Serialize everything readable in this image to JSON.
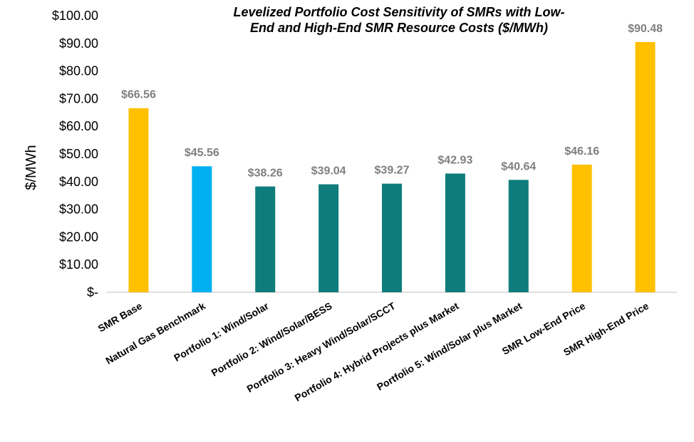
{
  "chart_data": {
    "type": "bar",
    "title": "Levelized Portfolio Cost Sensitivity of SMRs with Low-End and High-End SMR Resource Costs ($/MWh)",
    "title_lines": [
      "Levelized Portfolio Cost Sensitivity of SMRs with Low-",
      "End and High-End SMR Resource Costs ($/MWh)"
    ],
    "ylabel": "$/MWh",
    "xlabel": "",
    "ylim": [
      0,
      100
    ],
    "y_ticks": [
      0,
      10,
      20,
      30,
      40,
      50,
      60,
      70,
      80,
      90,
      100
    ],
    "y_tick_labels": [
      "$-",
      "$10.00",
      "$20.00",
      "$30.00",
      "$40.00",
      "$50.00",
      "$60.00",
      "$70.00",
      "$80.00",
      "$90.00",
      "$100.00"
    ],
    "grid": false,
    "legend": "none",
    "categories": [
      "SMR Base",
      "Natural Gas Benchmark",
      "Portfolio 1: Wind/Solar",
      "Portfolio 2: Wind/Solar/BESS",
      "Portfolio 3: Heavy Wind/Solar/SCCT",
      "Portfolio 4: Hybrid Projects plus Market",
      "Portfolio 5: Wind/Solar plus Market",
      "SMR Low-End Price",
      "SMR High-End Price"
    ],
    "values": [
      66.56,
      45.56,
      38.26,
      39.04,
      39.27,
      42.93,
      40.64,
      46.16,
      90.48
    ],
    "data_labels": [
      "$66.56",
      "$45.56",
      "$38.26",
      "$39.04",
      "$39.27",
      "$42.93",
      "$40.64",
      "$46.16",
      "$90.48"
    ],
    "bar_colors": [
      "#FFC000",
      "#00B0F0",
      "#0E7C7B",
      "#0E7C7B",
      "#0E7C7B",
      "#0E7C7B",
      "#0E7C7B",
      "#FFC000",
      "#FFC000"
    ],
    "label_color": "#7F7F7F",
    "axis_color": "#BFBFBF"
  }
}
